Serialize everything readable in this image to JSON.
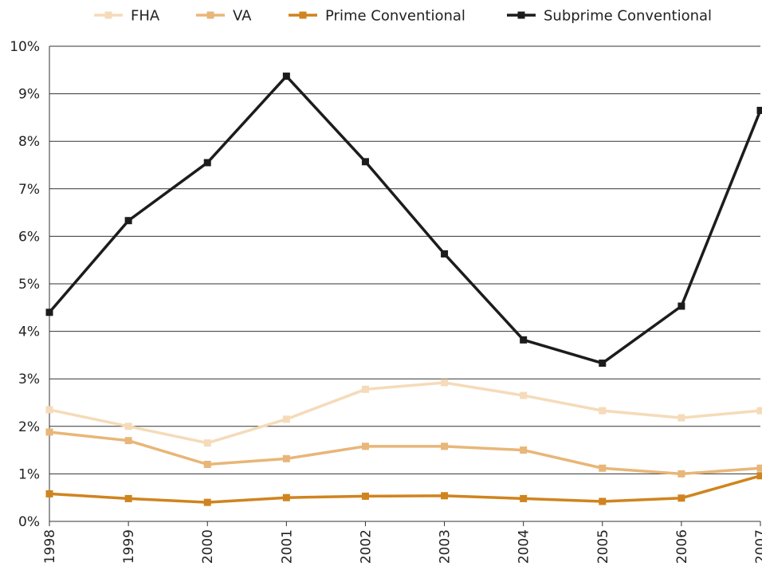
{
  "chart_data": {
    "type": "line",
    "x": [
      "1998",
      "1999",
      "2000",
      "2001",
      "2002",
      "2003",
      "2004",
      "2005",
      "2006",
      "2007"
    ],
    "y_ticks": [
      "0%",
      "1%",
      "2%",
      "3%",
      "4%",
      "5%",
      "6%",
      "7%",
      "8%",
      "9%",
      "10%"
    ],
    "ylim": [
      0,
      10
    ],
    "grid": "horizontal",
    "legend_position": "top",
    "series": [
      {
        "name": "FHA",
        "color": "#f5dbb9",
        "values": [
          2.35,
          2.0,
          1.65,
          2.15,
          2.78,
          2.92,
          2.65,
          2.33,
          2.18,
          2.33
        ]
      },
      {
        "name": "VA",
        "color": "#e8b678",
        "values": [
          1.88,
          1.7,
          1.2,
          1.32,
          1.58,
          1.58,
          1.5,
          1.12,
          1.0,
          1.12
        ]
      },
      {
        "name": "Prime Conventional",
        "color": "#d0841e",
        "values": [
          0.58,
          0.48,
          0.4,
          0.5,
          0.53,
          0.54,
          0.48,
          0.42,
          0.49,
          0.96
        ]
      },
      {
        "name": "Subprime Conventional",
        "color": "#1c1c1c",
        "values": [
          4.4,
          6.33,
          7.55,
          9.37,
          7.57,
          5.63,
          3.82,
          3.33,
          4.53,
          8.65
        ]
      }
    ]
  }
}
